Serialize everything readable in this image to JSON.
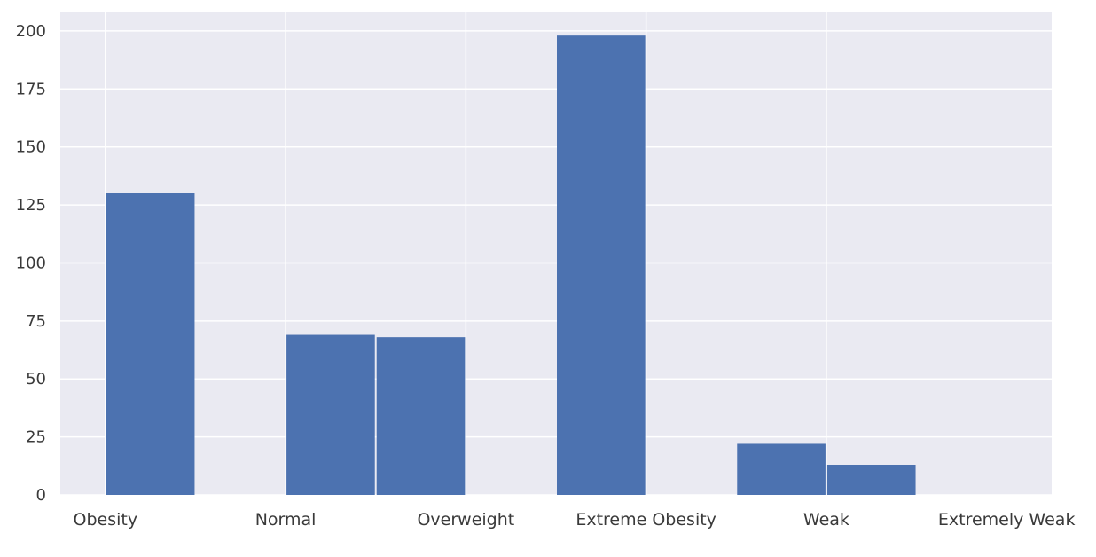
{
  "chart_data": {
    "type": "bar",
    "title": "",
    "xlabel": "",
    "ylabel": "",
    "grid": true,
    "legend": "none",
    "background_color": "#eaeaf2",
    "grid_color": "#ffffff",
    "bar_color": "#4c72b0",
    "ylim": [
      0,
      208
    ],
    "yticks": [
      "0",
      "25",
      "50",
      "75",
      "100",
      "125",
      "150",
      "175",
      "200"
    ],
    "x_axis_range": [
      0,
      11
    ],
    "bins": [
      {
        "start": 0.5,
        "end": 1.5,
        "value": 130
      },
      {
        "start": 1.5,
        "end": 2.5,
        "value": 0
      },
      {
        "start": 2.5,
        "end": 3.5,
        "value": 69
      },
      {
        "start": 3.5,
        "end": 4.5,
        "value": 68
      },
      {
        "start": 4.5,
        "end": 5.5,
        "value": 0
      },
      {
        "start": 5.5,
        "end": 6.5,
        "value": 198
      },
      {
        "start": 6.5,
        "end": 7.5,
        "value": 0
      },
      {
        "start": 7.5,
        "end": 8.5,
        "value": 22
      },
      {
        "start": 8.5,
        "end": 9.5,
        "value": 13
      }
    ],
    "categories": [
      {
        "label": "Obesity",
        "position": 0.5
      },
      {
        "label": "Normal",
        "position": 2.5
      },
      {
        "label": "Overweight",
        "position": 4.5
      },
      {
        "label": "Extreme Obesity",
        "position": 6.5
      },
      {
        "label": "Weak",
        "position": 8.5
      },
      {
        "label": "Extremely Weak",
        "position": 10.5
      }
    ],
    "xgrid_positions": [
      0.5,
      2.5,
      4.5,
      6.5,
      8.5
    ]
  }
}
